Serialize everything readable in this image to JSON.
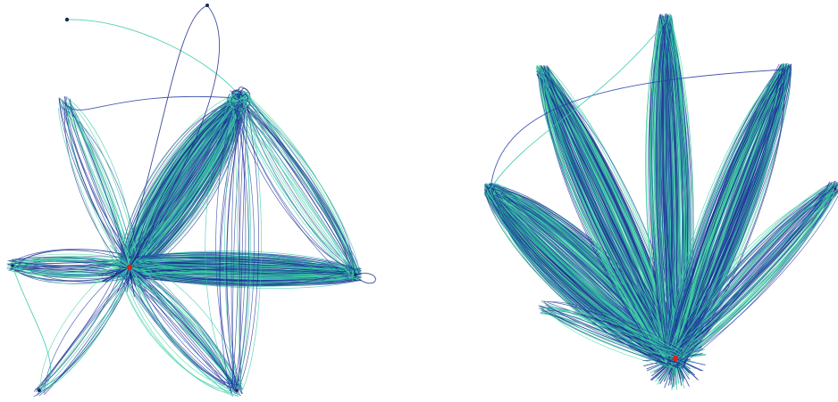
{
  "palette": {
    "navy": "#1b2a8c",
    "teal": "#2fc7a8",
    "blue": "#243fa6",
    "green": "#47d6a0",
    "hub": "#e0201b",
    "node": "#1a2a5a"
  },
  "panels": [
    {
      "id": "left",
      "layout": "force-directed",
      "hub_color": "#e0201b",
      "clusters": 6
    },
    {
      "id": "right",
      "layout": "radial-fan",
      "hub_color": "#e0201b",
      "clusters": 6
    }
  ]
}
